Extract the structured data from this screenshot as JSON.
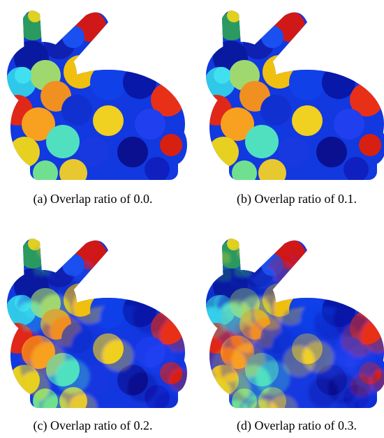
{
  "panels": [
    {
      "caption": "(a) Overlap ratio of 0.0."
    },
    {
      "caption": "(b) Overlap ratio of 0.1."
    },
    {
      "caption": "(c) Overlap ratio of 0.2."
    },
    {
      "caption": "(d) Overlap ratio of 0.3."
    }
  ]
}
